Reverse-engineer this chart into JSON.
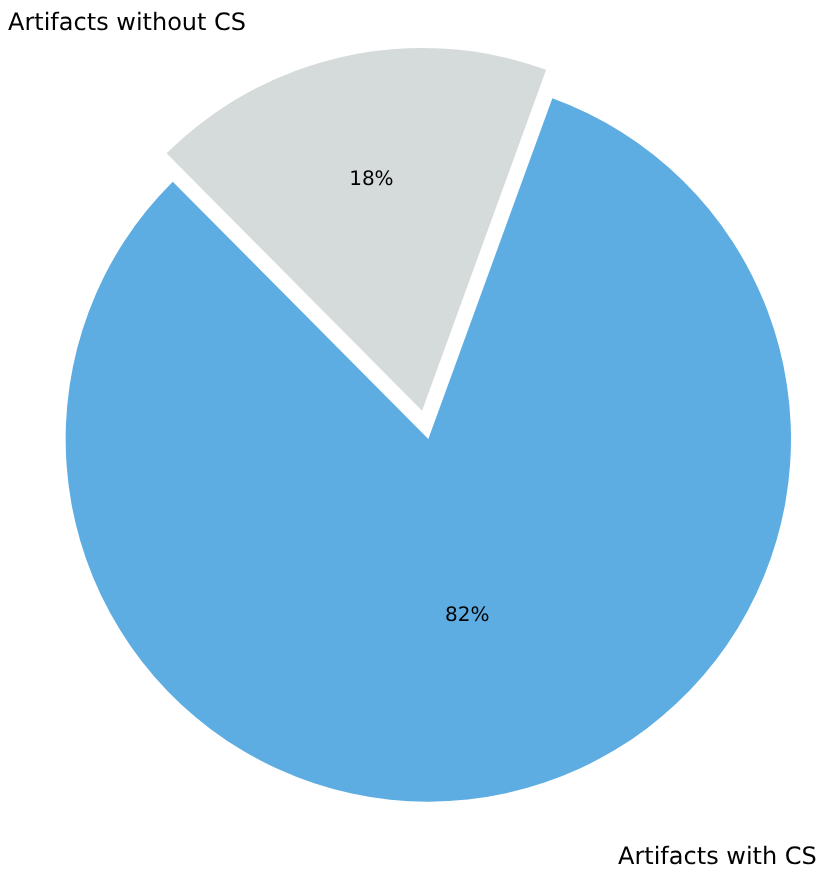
{
  "chart_data": {
    "type": "pie",
    "categories": [
      "Artifacts with CS",
      "Artifacts without CS"
    ],
    "values": [
      82,
      18
    ],
    "value_labels": [
      "82%",
      "18%"
    ],
    "colors": [
      "#5dade2",
      "#d5dbdb"
    ],
    "legend": false
  }
}
